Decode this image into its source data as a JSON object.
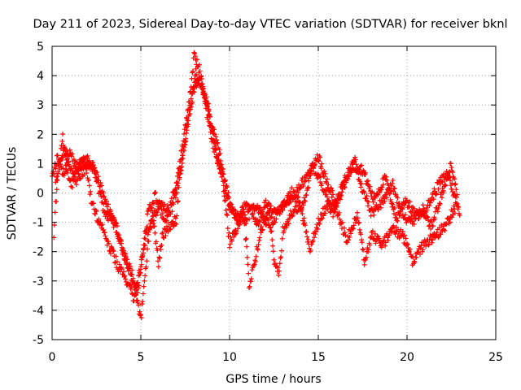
{
  "chart_data": {
    "type": "scatter",
    "title": "Day 211 of 2023, Sidereal Day-to-day VTEC variation (SDTVAR) for receiver bknl",
    "xlabel": "GPS time / hours",
    "ylabel": "SDTVAR / TECUs",
    "xlim": [
      0,
      25
    ],
    "ylim": [
      -5,
      5
    ],
    "x_ticks": [
      "0",
      "5",
      "10",
      "15",
      "20",
      "25"
    ],
    "y_ticks": [
      "-5",
      "-4",
      "-3",
      "-2",
      "-1",
      "0",
      "1",
      "2",
      "3",
      "4",
      "5"
    ],
    "grid": true,
    "marker": "+",
    "series": [
      {
        "name": "SDTVAR",
        "color": "#ff0000",
        "tracks": [
          [
            [
              0.0,
              0.6
            ],
            [
              0.3,
              1.2
            ],
            [
              0.6,
              0.6
            ],
            [
              1.0,
              1.3
            ],
            [
              1.4,
              0.9
            ],
            [
              2.0,
              1.1
            ],
            [
              2.6,
              0.5
            ],
            [
              3.0,
              -0.3
            ],
            [
              3.6,
              -1.2
            ],
            [
              4.2,
              -2.4
            ],
            [
              4.7,
              -3.3
            ],
            [
              5.0,
              -4.3
            ],
            [
              5.2,
              -3.0
            ],
            [
              5.5,
              -1.2
            ],
            [
              6.0,
              -0.4
            ],
            [
              6.6,
              -0.6
            ],
            [
              7.0,
              0.4
            ],
            [
              7.4,
              1.8
            ],
            [
              7.8,
              3.5
            ],
            [
              8.0,
              4.7
            ],
            [
              8.3,
              4.2
            ],
            [
              8.6,
              3.2
            ],
            [
              9.0,
              1.8
            ],
            [
              9.5,
              0.8
            ],
            [
              10.0,
              -0.5
            ],
            [
              10.5,
              -0.9
            ],
            [
              11.0,
              -0.3
            ],
            [
              11.6,
              -1.0
            ],
            [
              12.0,
              -0.4
            ],
            [
              12.6,
              -0.7
            ],
            [
              13.2,
              -0.3
            ],
            [
              13.8,
              0.1
            ],
            [
              14.4,
              0.6
            ],
            [
              15.0,
              1.2
            ],
            [
              15.5,
              0.4
            ],
            [
              16.0,
              -0.4
            ],
            [
              16.6,
              0.5
            ],
            [
              17.0,
              1.2
            ],
            [
              17.4,
              0.3
            ],
            [
              18.0,
              -0.7
            ],
            [
              18.6,
              -0.3
            ],
            [
              19.2,
              0.3
            ],
            [
              19.6,
              -0.6
            ],
            [
              20.2,
              -1.0
            ],
            [
              20.8,
              -0.7
            ],
            [
              21.4,
              -1.1
            ],
            [
              22.0,
              0.0
            ],
            [
              22.5,
              1.0
            ],
            [
              23.0,
              -0.8
            ]
          ],
          [
            [
              0.1,
              -1.4
            ],
            [
              0.3,
              0.5
            ],
            [
              0.6,
              1.9
            ],
            [
              1.0,
              0.3
            ],
            [
              1.5,
              0.5
            ],
            [
              1.9,
              0.9
            ],
            [
              2.2,
              -0.2
            ],
            [
              2.6,
              -0.9
            ],
            [
              3.2,
              -1.8
            ],
            [
              3.8,
              -2.6
            ],
            [
              4.3,
              -3.1
            ],
            [
              4.6,
              -3.6
            ],
            [
              4.9,
              -2.8
            ],
            [
              5.3,
              -1.4
            ],
            [
              5.7,
              -0.8
            ],
            [
              6.0,
              -2.5
            ],
            [
              6.2,
              -1.5
            ],
            [
              6.5,
              -1.2
            ],
            [
              7.0,
              -0.9
            ],
            [
              7.2,
              0.6
            ],
            [
              7.6,
              2.2
            ],
            [
              8.0,
              3.6
            ],
            [
              8.4,
              3.8
            ],
            [
              8.8,
              2.9
            ],
            [
              9.2,
              1.5
            ],
            [
              9.6,
              0.6
            ],
            [
              10.0,
              -1.7
            ],
            [
              10.4,
              -1.2
            ],
            [
              10.8,
              -0.6
            ],
            [
              11.1,
              -3.1
            ],
            [
              11.4,
              -2.4
            ],
            [
              11.8,
              -1.2
            ],
            [
              12.2,
              -0.5
            ],
            [
              12.5,
              -2.2
            ],
            [
              12.8,
              -2.8
            ],
            [
              13.0,
              -1.3
            ],
            [
              13.5,
              -0.7
            ],
            [
              14.0,
              -0.4
            ],
            [
              14.5,
              -1.9
            ],
            [
              15.0,
              -1.0
            ],
            [
              15.5,
              -0.4
            ],
            [
              16.0,
              -0.5
            ],
            [
              16.6,
              -1.6
            ],
            [
              17.2,
              -0.8
            ],
            [
              17.6,
              -2.3
            ],
            [
              18.0,
              -1.4
            ],
            [
              18.6,
              -1.8
            ],
            [
              19.2,
              -1.2
            ],
            [
              19.8,
              -1.5
            ],
            [
              20.3,
              -2.3
            ],
            [
              20.9,
              -1.8
            ],
            [
              21.5,
              -1.5
            ],
            [
              22.2,
              -1.1
            ],
            [
              22.8,
              -0.4
            ]
          ],
          [
            [
              0.2,
              0.4
            ],
            [
              0.7,
              1.5
            ],
            [
              1.2,
              0.6
            ],
            [
              1.8,
              1.2
            ],
            [
              2.4,
              0.8
            ],
            [
              2.7,
              -0.1
            ],
            [
              3.0,
              -0.7
            ],
            [
              3.5,
              -0.9
            ],
            [
              4.0,
              -2.0
            ],
            [
              4.5,
              -2.8
            ],
            [
              4.8,
              -3.5
            ],
            [
              5.1,
              -2.1
            ],
            [
              5.4,
              -0.7
            ],
            [
              5.8,
              -0.1
            ],
            [
              6.3,
              -0.9
            ],
            [
              6.8,
              -0.5
            ],
            [
              7.3,
              1.0
            ],
            [
              7.7,
              2.6
            ],
            [
              8.1,
              4.1
            ],
            [
              8.5,
              3.5
            ],
            [
              9.0,
              2.3
            ],
            [
              9.4,
              1.4
            ],
            [
              9.8,
              0.2
            ],
            [
              10.2,
              -0.7
            ],
            [
              10.9,
              -0.9
            ],
            [
              11.5,
              -0.4
            ],
            [
              12.2,
              -1.1
            ],
            [
              12.9,
              -0.6
            ],
            [
              13.5,
              0.0
            ],
            [
              14.1,
              -0.5
            ],
            [
              14.7,
              0.9
            ],
            [
              15.3,
              0.2
            ],
            [
              15.8,
              -0.7
            ],
            [
              16.4,
              0.3
            ],
            [
              16.9,
              0.9
            ],
            [
              17.5,
              0.8
            ],
            [
              18.1,
              -0.2
            ],
            [
              18.8,
              0.5
            ],
            [
              19.4,
              -0.9
            ],
            [
              19.9,
              -0.2
            ],
            [
              20.5,
              -0.8
            ],
            [
              21.2,
              -0.4
            ],
            [
              21.8,
              0.3
            ],
            [
              22.3,
              0.7
            ],
            [
              22.9,
              -0.6
            ]
          ]
        ]
      }
    ]
  }
}
